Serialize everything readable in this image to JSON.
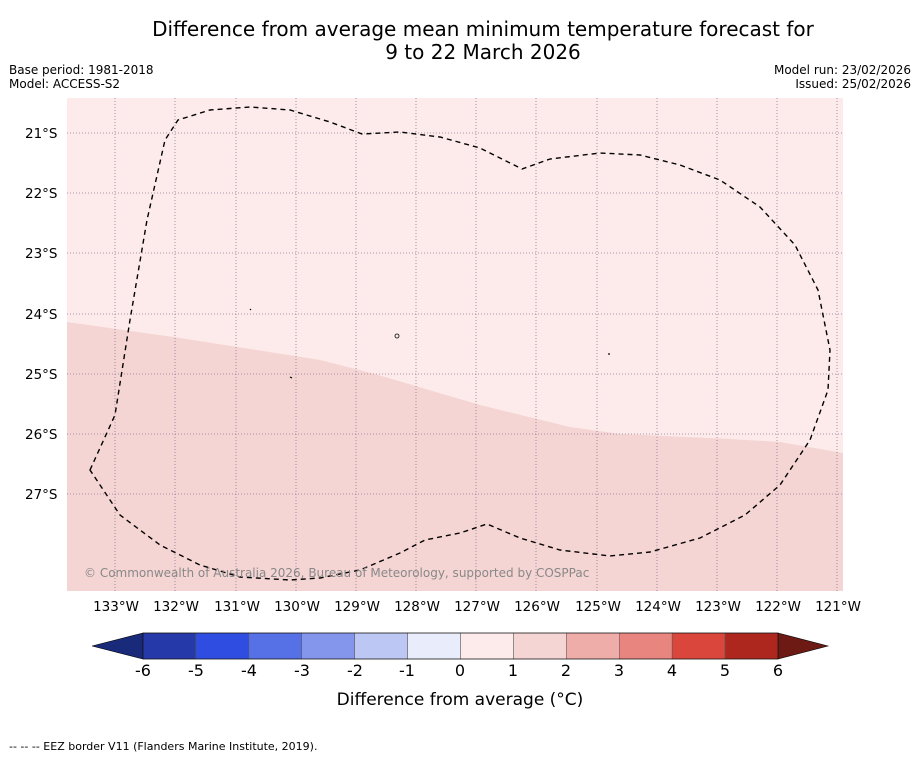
{
  "title_line1": "Difference from average mean minimum temperature forecast for",
  "title_line2": "9 to 22 March 2026",
  "base_period": "Base period: 1981-2018",
  "model": "Model: ACCESS-S2",
  "model_run": "Model run: 23/02/2026",
  "issued": "Issued: 25/02/2026",
  "lat_labels": [
    "21°S",
    "22°S",
    "23°S",
    "24°S",
    "25°S",
    "26°S",
    "27°S"
  ],
  "lon_labels": [
    "133°W",
    "132°W",
    "131°W",
    "130°W",
    "129°W",
    "128°W",
    "127°W",
    "126°W",
    "125°W",
    "124°W",
    "123°W",
    "122°W",
    "121°W"
  ],
  "copyright": "© Commonwealth of Australia 2026, Bureau of Meteorology, supported by COSPPac",
  "colorbar": {
    "title": "Difference from average (°C)",
    "tick_labels": [
      "-6",
      "-5",
      "-4",
      "-3",
      "-2",
      "-1",
      "0",
      "1",
      "2",
      "3",
      "4",
      "5",
      "6"
    ],
    "colors": [
      "#2539a8",
      "#2f4de0",
      "#5670e6",
      "#8396ec",
      "#bdc7f4",
      "#e8ecfb",
      "#fcebea",
      "#f5d5d3",
      "#eeada8",
      "#e8857e",
      "#db463c",
      "#ad271f"
    ],
    "under_color": "#1a2a7a",
    "over_color": "#6e1a14"
  },
  "map_colors": {
    "zone_0_to_1": "#fcebea",
    "zone_1_to_2": "#f5d5d3",
    "eez_line": "#000000"
  },
  "footnote": "--  --  -- EEZ border V11 (Flanders Marine Institute, 2019)."
}
